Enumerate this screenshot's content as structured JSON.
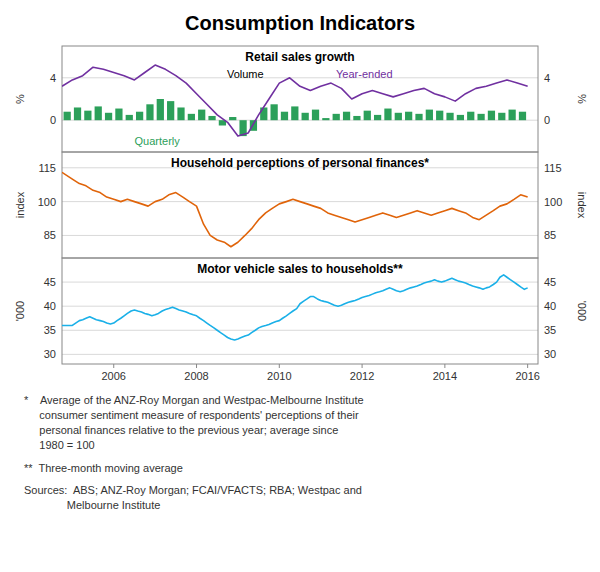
{
  "title": "Consumption Indicators",
  "chart_data": [
    {
      "type": "bar",
      "title": "Retail sales growth",
      "ylabel": "%",
      "y2label": "%",
      "xlim": [
        2004.75,
        2016.25
      ],
      "ylim": [
        -3,
        7
      ],
      "yticks": [
        0,
        4
      ],
      "y2lim": [
        -3,
        7
      ],
      "y2ticks": [
        0,
        4
      ],
      "grid": true,
      "tick_labels": "y",
      "annotations": [
        "Volume"
      ],
      "series": [
        {
          "name": "Quarterly",
          "type": "bar",
          "color": "#2ca05a",
          "x": [
            2004.875,
            2005.125,
            2005.375,
            2005.625,
            2005.875,
            2006.125,
            2006.375,
            2006.625,
            2006.875,
            2007.125,
            2007.375,
            2007.625,
            2007.875,
            2008.125,
            2008.375,
            2008.625,
            2008.875,
            2009.125,
            2009.375,
            2009.625,
            2009.875,
            2010.125,
            2010.375,
            2010.625,
            2010.875,
            2011.125,
            2011.375,
            2011.625,
            2011.875,
            2012.125,
            2012.375,
            2012.625,
            2012.875,
            2013.125,
            2013.375,
            2013.625,
            2013.875,
            2014.125,
            2014.375,
            2014.625,
            2014.875,
            2015.125,
            2015.375,
            2015.625,
            2015.875
          ],
          "values": [
            0.8,
            1.2,
            0.9,
            1.3,
            0.7,
            1.1,
            0.5,
            0.8,
            1.5,
            2.0,
            1.8,
            1.2,
            0.6,
            1.0,
            0.4,
            -0.5,
            0.3,
            -1.5,
            -1.0,
            1.2,
            1.5,
            0.8,
            1.3,
            0.7,
            1.0,
            0.2,
            0.6,
            0.8,
            0.4,
            0.9,
            0.5,
            1.1,
            0.7,
            0.8,
            0.6,
            1.0,
            0.9,
            0.7,
            0.5,
            0.8,
            0.6,
            0.9,
            0.7,
            1.0,
            0.8
          ]
        },
        {
          "name": "Year-ended",
          "type": "line",
          "color": "#7030a0",
          "x": [
            2004.75,
            2005.0,
            2005.25,
            2005.5,
            2005.75,
            2006.0,
            2006.25,
            2006.5,
            2006.75,
            2007.0,
            2007.25,
            2007.5,
            2007.75,
            2008.0,
            2008.25,
            2008.5,
            2008.75,
            2009.0,
            2009.25,
            2009.5,
            2009.75,
            2010.0,
            2010.25,
            2010.5,
            2010.75,
            2011.0,
            2011.25,
            2011.5,
            2011.75,
            2012.0,
            2012.25,
            2012.5,
            2012.75,
            2013.0,
            2013.25,
            2013.5,
            2013.75,
            2014.0,
            2014.25,
            2014.5,
            2014.75,
            2015.0,
            2015.25,
            2015.5,
            2015.75,
            2016.0
          ],
          "values": [
            3.2,
            3.8,
            4.2,
            5.0,
            4.8,
            4.5,
            4.2,
            3.8,
            4.5,
            5.2,
            4.8,
            4.2,
            3.5,
            2.5,
            1.5,
            0.5,
            -0.2,
            -1.5,
            -1.2,
            0.5,
            2.0,
            3.5,
            4.0,
            3.2,
            2.8,
            3.2,
            3.5,
            3.0,
            2.0,
            2.5,
            2.8,
            2.5,
            2.2,
            2.5,
            2.8,
            3.0,
            2.5,
            2.2,
            1.8,
            2.5,
            3.0,
            3.2,
            3.5,
            3.8,
            3.5,
            3.2
          ]
        }
      ]
    },
    {
      "type": "line",
      "title": "Household perceptions of personal finances*",
      "ylabel": "index",
      "y2label": "index",
      "xlim": [
        2004.75,
        2016.25
      ],
      "ylim": [
        75,
        122
      ],
      "yticks": [
        85,
        100,
        115
      ],
      "y2lim": [
        75,
        122
      ],
      "y2ticks": [
        85,
        100,
        115
      ],
      "grid": true,
      "tick_labels": "y",
      "series": [
        {
          "color": "#e0640a",
          "x": [
            2004.75,
            2005.0,
            2005.17,
            2005.33,
            2005.5,
            2005.67,
            2005.83,
            2006.0,
            2006.17,
            2006.33,
            2006.5,
            2006.67,
            2006.83,
            2007.0,
            2007.17,
            2007.33,
            2007.5,
            2007.67,
            2007.83,
            2008.0,
            2008.17,
            2008.33,
            2008.5,
            2008.67,
            2008.83,
            2009.0,
            2009.17,
            2009.33,
            2009.5,
            2009.67,
            2009.83,
            2010.0,
            2010.17,
            2010.33,
            2010.5,
            2010.67,
            2010.83,
            2011.0,
            2011.17,
            2011.33,
            2011.5,
            2011.67,
            2011.83,
            2012.0,
            2012.17,
            2012.33,
            2012.5,
            2012.67,
            2012.83,
            2013.0,
            2013.17,
            2013.33,
            2013.5,
            2013.67,
            2013.83,
            2014.0,
            2014.17,
            2014.33,
            2014.5,
            2014.67,
            2014.83,
            2015.0,
            2015.17,
            2015.33,
            2015.5,
            2015.67,
            2015.83,
            2016.0
          ],
          "values": [
            113,
            110,
            108,
            107,
            105,
            104,
            102,
            101,
            100,
            101,
            100,
            99,
            98,
            100,
            101,
            103,
            104,
            102,
            100,
            98,
            90,
            85,
            83,
            82,
            80,
            82,
            85,
            88,
            92,
            95,
            97,
            99,
            100,
            101,
            100,
            99,
            98,
            97,
            95,
            94,
            93,
            92,
            91,
            92,
            93,
            94,
            95,
            94,
            93,
            94,
            95,
            96,
            95,
            94,
            95,
            96,
            97,
            96,
            95,
            93,
            92,
            94,
            96,
            98,
            99,
            101,
            103,
            102
          ]
        }
      ]
    },
    {
      "type": "line",
      "title": "Motor vehicle sales to households**",
      "ylabel": "'000",
      "y2label": "'000",
      "xlim": [
        2004.75,
        2016.25
      ],
      "xticks": [
        2006,
        2008,
        2010,
        2012,
        2014,
        2016
      ],
      "ylim": [
        28,
        50
      ],
      "yticks": [
        30,
        35,
        40,
        45
      ],
      "y2lim": [
        28,
        50
      ],
      "y2ticks": [
        30,
        35,
        40,
        45
      ],
      "grid": true,
      "series": [
        {
          "color": "#1ab0e8",
          "x": [
            2004.75,
            2005.0,
            2005.08,
            2005.17,
            2005.25,
            2005.33,
            2005.42,
            2005.5,
            2005.58,
            2005.67,
            2005.75,
            2005.83,
            2005.92,
            2006.0,
            2006.08,
            2006.17,
            2006.25,
            2006.33,
            2006.42,
            2006.5,
            2006.58,
            2006.67,
            2006.75,
            2006.83,
            2006.92,
            2007.0,
            2007.08,
            2007.17,
            2007.25,
            2007.33,
            2007.42,
            2007.5,
            2007.58,
            2007.67,
            2007.75,
            2007.83,
            2007.92,
            2008.0,
            2008.08,
            2008.17,
            2008.25,
            2008.33,
            2008.42,
            2008.5,
            2008.58,
            2008.67,
            2008.75,
            2008.83,
            2008.92,
            2009.0,
            2009.08,
            2009.17,
            2009.25,
            2009.33,
            2009.42,
            2009.5,
            2009.58,
            2009.67,
            2009.75,
            2009.83,
            2009.92,
            2010.0,
            2010.08,
            2010.17,
            2010.25,
            2010.33,
            2010.42,
            2010.5,
            2010.58,
            2010.67,
            2010.75,
            2010.83,
            2010.92,
            2011.0,
            2011.08,
            2011.17,
            2011.25,
            2011.33,
            2011.42,
            2011.5,
            2011.58,
            2011.67,
            2011.75,
            2011.83,
            2011.92,
            2012.0,
            2012.08,
            2012.17,
            2012.25,
            2012.33,
            2012.42,
            2012.5,
            2012.58,
            2012.67,
            2012.75,
            2012.83,
            2012.92,
            2013.0,
            2013.08,
            2013.17,
            2013.25,
            2013.33,
            2013.42,
            2013.5,
            2013.58,
            2013.67,
            2013.75,
            2013.83,
            2013.92,
            2014.0,
            2014.08,
            2014.17,
            2014.25,
            2014.33,
            2014.42,
            2014.5,
            2014.58,
            2014.67,
            2014.75,
            2014.83,
            2014.92,
            2015.0,
            2015.08,
            2015.17,
            2015.25,
            2015.33,
            2015.42,
            2015.5,
            2015.58,
            2015.67,
            2015.75,
            2015.83,
            2015.92,
            2016.0
          ],
          "values": [
            36,
            36,
            36.5,
            37,
            37.2,
            37.5,
            37.8,
            37.5,
            37.2,
            37.0,
            36.8,
            36.5,
            36.3,
            36.5,
            37.0,
            37.5,
            38.0,
            38.5,
            39.0,
            39.2,
            39.0,
            38.8,
            38.5,
            38.3,
            38.0,
            38.2,
            38.5,
            39.0,
            39.3,
            39.5,
            39.8,
            39.5,
            39.2,
            39.0,
            38.8,
            38.5,
            38.2,
            38.0,
            37.5,
            37.0,
            36.5,
            36.0,
            35.5,
            35.0,
            34.5,
            34.0,
            33.5,
            33.2,
            33.0,
            33.2,
            33.5,
            33.8,
            34.0,
            34.5,
            35.0,
            35.5,
            35.8,
            36.0,
            36.2,
            36.5,
            36.8,
            37.0,
            37.5,
            38.0,
            38.5,
            39.0,
            39.5,
            40.5,
            41.0,
            41.5,
            42.0,
            42.0,
            41.5,
            41.2,
            41.0,
            40.8,
            40.5,
            40.2,
            40.0,
            40.2,
            40.5,
            40.8,
            41.0,
            41.2,
            41.5,
            41.8,
            42.0,
            42.2,
            42.5,
            42.8,
            43.0,
            43.2,
            43.5,
            43.8,
            43.5,
            43.2,
            43.0,
            43.2,
            43.5,
            43.8,
            44.0,
            44.2,
            44.5,
            44.8,
            45.0,
            45.2,
            45.5,
            45.2,
            45.0,
            45.2,
            45.5,
            45.8,
            45.5,
            45.2,
            45.0,
            44.8,
            44.5,
            44.2,
            44.0,
            43.8,
            43.5,
            43.8,
            44.0,
            44.5,
            45.0,
            46.0,
            46.5,
            46.0,
            45.5,
            45.0,
            44.5,
            44.0,
            43.5,
            43.8
          ]
        }
      ]
    }
  ],
  "annotations": [
    "*    Average of the ANZ-Roy Morgan and Westpac-Melbourne Institute",
    "     consumer sentiment measure of respondents' perceptions of their",
    "     personal finances relative to the previous year; average since",
    "     1980 = 100",
    "**  Three-month moving average",
    "Sources:  ABS; ANZ-Roy Morgan; FCAI/VFACTS; RBA; Westpac and",
    "              Melbourne Institute"
  ]
}
